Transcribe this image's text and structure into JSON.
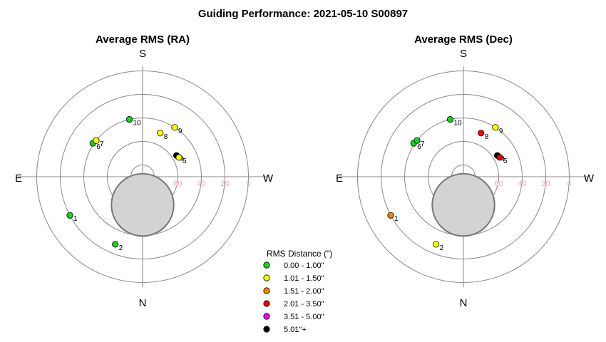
{
  "title": "Guiding Performance: 2021-05-10 S00897",
  "directions": {
    "top": "S",
    "bottom": "N",
    "left": "E",
    "right": "W"
  },
  "legend": {
    "title": "RMS Distance (\")",
    "entries": [
      {
        "label": "0.00 - 1.00\"",
        "color": "#1ed01e"
      },
      {
        "label": "1.01 - 1.50\"",
        "color": "#ffff00"
      },
      {
        "label": "1.51 - 2.00\"",
        "color": "#ee8800"
      },
      {
        "label": "2.01 - 3.50\"",
        "color": "#ee0000"
      },
      {
        "label": "3.51 - 5.00\"",
        "color": "#ee00ee"
      },
      {
        "label": "5.01\"+",
        "color": "#000000"
      }
    ]
  },
  "chart_data": [
    {
      "type": "scatter",
      "subtitle": "Average RMS (RA)",
      "radial_axis": {
        "ticks": [
          80,
          60,
          40,
          20,
          0
        ],
        "outer": 0,
        "center": 90
      },
      "points": [
        {
          "label": "1",
          "azimuth": 118,
          "altitude": 20,
          "rms_class": 0
        },
        {
          "label": "2",
          "azimuth": 158,
          "altitude": 28,
          "rms_class": 0
        },
        {
          "label": "4",
          "azimuth": 302,
          "altitude": 56,
          "rms_class": 5
        },
        {
          "label": "5",
          "azimuth": 298,
          "altitude": 55,
          "rms_class": 1
        },
        {
          "label": "6",
          "azimuth": 56,
          "altitude": 39,
          "rms_class": 0
        },
        {
          "label": "7",
          "azimuth": 52,
          "altitude": 40,
          "rms_class": 1
        },
        {
          "label": "8",
          "azimuth": 338,
          "altitude": 50,
          "rms_class": 1
        },
        {
          "label": "9",
          "azimuth": 327,
          "altitude": 40,
          "rms_class": 1
        },
        {
          "label": "10",
          "azimuth": 13,
          "altitude": 40,
          "rms_class": 0
        }
      ]
    },
    {
      "type": "scatter",
      "subtitle": "Average RMS (Dec)",
      "radial_axis": {
        "ticks": [
          80,
          60,
          40,
          20,
          0
        ],
        "outer": 0,
        "center": 90
      },
      "points": [
        {
          "label": "1",
          "azimuth": 118,
          "altitude": 20,
          "rms_class": 2
        },
        {
          "label": "2",
          "azimuth": 158,
          "altitude": 28,
          "rms_class": 1
        },
        {
          "label": "4",
          "azimuth": 302,
          "altitude": 56,
          "rms_class": 5
        },
        {
          "label": "5",
          "azimuth": 298,
          "altitude": 55,
          "rms_class": 3
        },
        {
          "label": "6",
          "azimuth": 56,
          "altitude": 39,
          "rms_class": 0
        },
        {
          "label": "7",
          "azimuth": 52,
          "altitude": 40,
          "rms_class": 0
        },
        {
          "label": "8",
          "azimuth": 338,
          "altitude": 50,
          "rms_class": 3
        },
        {
          "label": "9",
          "azimuth": 327,
          "altitude": 40,
          "rms_class": 1
        },
        {
          "label": "10",
          "azimuth": 13,
          "altitude": 40,
          "rms_class": 0
        }
      ]
    }
  ],
  "moon": {
    "azimuth": 180,
    "altitude": 66,
    "apparent_radius_deg": 19
  }
}
